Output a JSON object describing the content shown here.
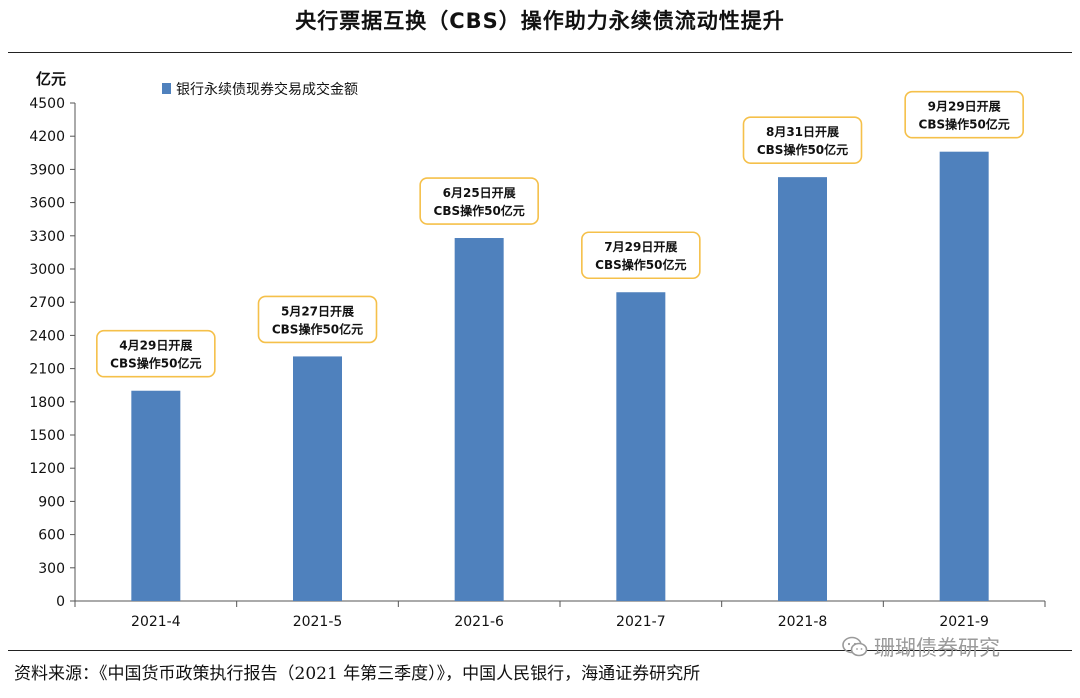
{
  "header": {
    "title": "央行票据互换（CBS）操作助力永续债流动性提升"
  },
  "footer": {
    "source": "资料来源：《中国货币政策执行报告（2021 年第三季度）》，中国人民银行，海通证券研究所"
  },
  "watermark": {
    "text": "珊瑚债券研究",
    "icon": "wechat-icon"
  },
  "chart_data": {
    "type": "bar",
    "title": "",
    "ylabel": "亿元",
    "xlabel": "",
    "categories": [
      "2021-4",
      "2021-5",
      "2021-6",
      "2021-7",
      "2021-8",
      "2021-9"
    ],
    "series": [
      {
        "name": "银行永续债现券交易成交金额",
        "color": "#4f81bd",
        "values": [
          1900,
          2210,
          3280,
          2790,
          3830,
          4060
        ]
      }
    ],
    "ylim": [
      0,
      4500
    ],
    "yticks": [
      0,
      300,
      600,
      900,
      1200,
      1500,
      1800,
      2100,
      2400,
      2700,
      3000,
      3300,
      3600,
      3900,
      4200,
      4500
    ],
    "legend_position": "top-left",
    "grid": false,
    "annotations": [
      {
        "category": "2021-4",
        "line1": "4月29日开展",
        "line2": "CBS操作50亿元"
      },
      {
        "category": "2021-5",
        "line1": "5月27日开展",
        "line2": "CBS操作50亿元"
      },
      {
        "category": "2021-6",
        "line1": "6月25日开展",
        "line2": "CBS操作50亿元"
      },
      {
        "category": "2021-7",
        "line1": "7月29日开展",
        "line2": "CBS操作50亿元"
      },
      {
        "category": "2021-8",
        "line1": "8月31日开展",
        "line2": "CBS操作50亿元"
      },
      {
        "category": "2021-9",
        "line1": "9月29日开展",
        "line2": "CBS操作50亿元"
      }
    ],
    "annotation_border_color": "#f5c04a"
  }
}
